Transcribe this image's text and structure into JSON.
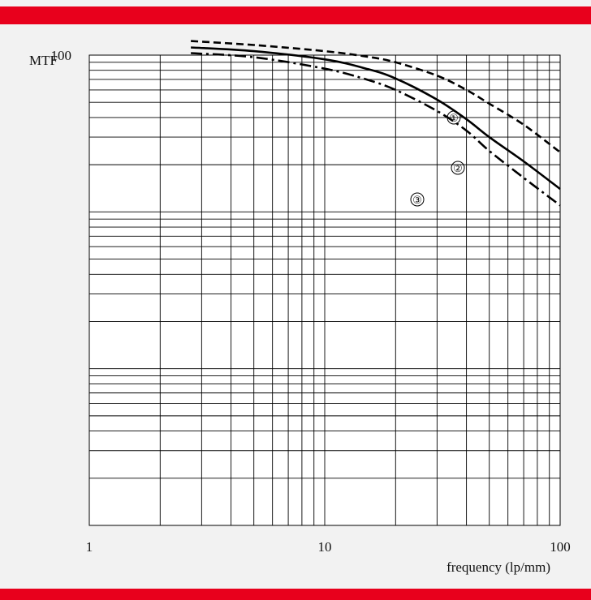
{
  "colors": {
    "banner": "#e8001c",
    "background": "#f2f2f2",
    "plot_background": "#ffffff",
    "grid": "#000000",
    "curves": "#000000"
  },
  "chart_data": {
    "type": "line",
    "title": "",
    "xlabel": "frequency (lp/mm)",
    "ylabel": "MTF",
    "xscale": "log",
    "yscale": "log",
    "xlim": [
      1,
      100
    ],
    "ylim": [
      0.1,
      100
    ],
    "grid": true,
    "x_tick_labels": [
      {
        "value": 1,
        "label": "1"
      },
      {
        "value": 10,
        "label": "10"
      },
      {
        "value": 100,
        "label": "100"
      }
    ],
    "y_tick_labels": [
      {
        "value": 100,
        "label": "100"
      }
    ],
    "series": [
      {
        "name": "①",
        "style": "dashed",
        "x": [
          2.7,
          5,
          10,
          15,
          20,
          30,
          40,
          50,
          70,
          100
        ],
        "y": [
          123,
          116,
          106,
          98,
          90,
          74,
          60,
          49,
          36,
          24
        ]
      },
      {
        "name": "②",
        "style": "solid",
        "x": [
          2.7,
          5,
          10,
          15,
          20,
          30,
          40,
          50,
          70,
          100
        ],
        "y": [
          112,
          106,
          94,
          82,
          71,
          52,
          39,
          30,
          21,
          14
        ]
      },
      {
        "name": "③",
        "style": "dash-dot",
        "x": [
          2.7,
          5,
          10,
          15,
          20,
          30,
          40,
          50,
          70,
          100
        ],
        "y": [
          103,
          97,
          82,
          70,
          60,
          44,
          33,
          24.5,
          16.5,
          11
        ]
      }
    ]
  }
}
